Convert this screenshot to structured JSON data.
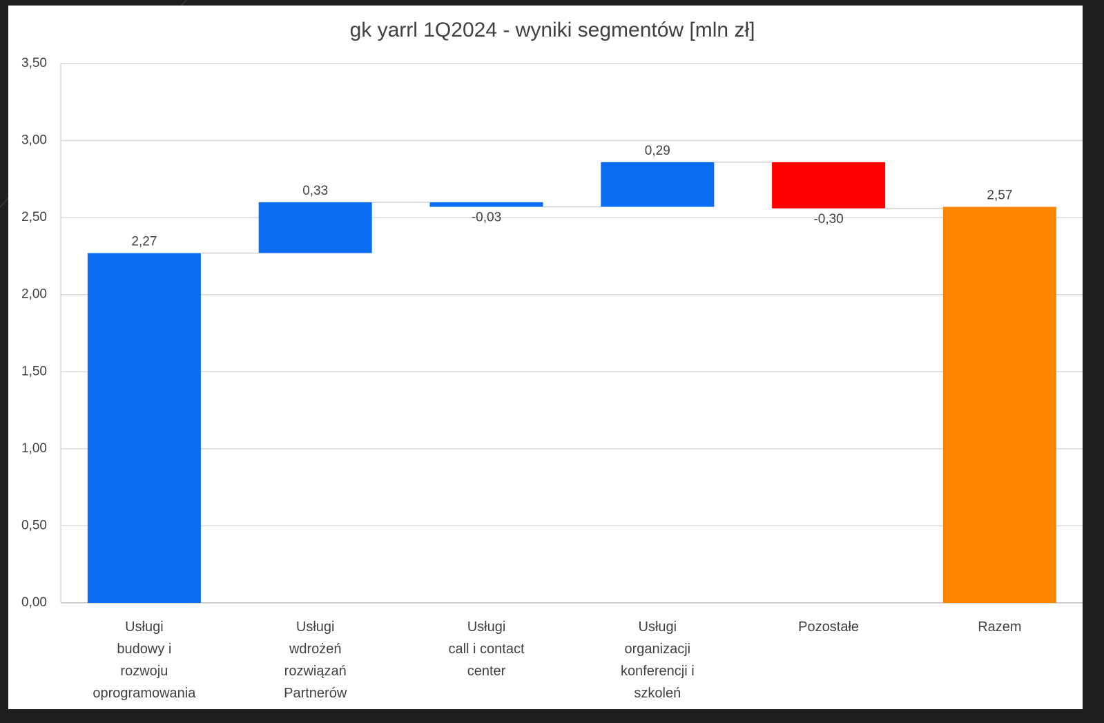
{
  "chart_data": {
    "type": "waterfall",
    "title": "gk yarrl 1Q2024 - wyniki segmentów [mln zł]",
    "categories": [
      "Usługi\nbudowy i\nrozwoju\noprogramowania",
      "Usługi\nwdrożeń\nrozwiązań\nPartnerów",
      "Usługi\ncall i contact\ncenter",
      "Usługi\norganizacji\nkonferencji i\nszkoleń",
      "Pozostałe",
      "Razem"
    ],
    "values": [
      2.27,
      0.33,
      -0.03,
      0.29,
      -0.3,
      2.57
    ],
    "value_labels": [
      "2,27",
      "0,33",
      "-0,03",
      "0,29",
      "-0,30",
      "2,57"
    ],
    "colors": [
      "#0a6cf0",
      "#0a6cf0",
      "#0a6cf0",
      "#0a6cf0",
      "#ff0000",
      "#ff8400"
    ],
    "total_indices": [
      5
    ],
    "ylim": [
      0,
      3.5
    ],
    "yticks": [
      {
        "value": 0,
        "label": "0,00"
      },
      {
        "value": 0.5,
        "label": "0,50"
      },
      {
        "value": 1,
        "label": "1,00"
      },
      {
        "value": 1.5,
        "label": "1,50"
      },
      {
        "value": 2,
        "label": "2,00"
      },
      {
        "value": 2.5,
        "label": "2,50"
      },
      {
        "value": 3,
        "label": "3,00"
      },
      {
        "value": 3.5,
        "label": "3,50"
      }
    ],
    "grid": true
  }
}
